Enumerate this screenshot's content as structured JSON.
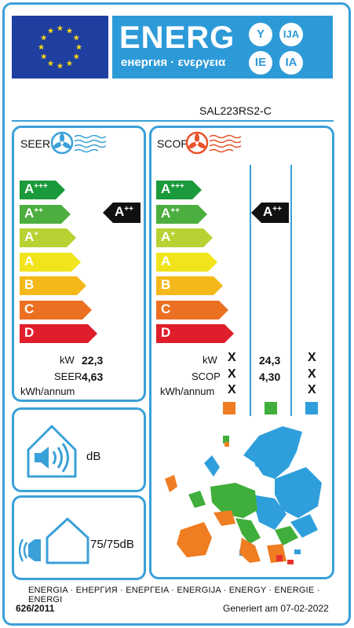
{
  "header": {
    "energy_word": "ENERG",
    "energy_sub": "енергия · ενεργεια",
    "lang_codes": [
      "Y",
      "IJA",
      "IE",
      "IA"
    ],
    "eu_flag_icon": "eu-flag-icon",
    "colors": {
      "brand_blue": "#2d9ad8",
      "eu_blue": "#1f3fa0",
      "star": "#f6d21a"
    }
  },
  "model": "SAL223RS2-C",
  "classes": [
    {
      "letter": "A",
      "sup": "+++",
      "color": "#1a9a3a"
    },
    {
      "letter": "A",
      "sup": "++",
      "color": "#4cae3e"
    },
    {
      "letter": "A",
      "sup": "+",
      "color": "#b7d232"
    },
    {
      "letter": "A",
      "sup": "",
      "color": "#f1e41c"
    },
    {
      "letter": "B",
      "sup": "",
      "color": "#f5b81a"
    },
    {
      "letter": "C",
      "sup": "",
      "color": "#ec7022"
    },
    {
      "letter": "D",
      "sup": "",
      "color": "#e01e2b"
    }
  ],
  "seer": {
    "title": "SEER",
    "icon": "fan-cool-icon",
    "indicator": {
      "letter": "A",
      "sup": "++"
    },
    "labels": {
      "kw": "kW",
      "seer": "SEER",
      "kwh": "kWh/annum"
    },
    "values": {
      "kw": "22,3",
      "seer": "4,63",
      "kwh": ""
    }
  },
  "scop": {
    "title": "SCOP",
    "icon": "fan-heat-icon",
    "indicator": {
      "letter": "A",
      "sup": "++"
    },
    "labels": {
      "kw": "kW",
      "scop": "SCOP",
      "kwh": "kWh/annum"
    },
    "col1": {
      "kw": "X",
      "scop": "X",
      "kwh": "X"
    },
    "col2": {
      "kw": "24,3",
      "scop": "4,30",
      "kwh": ""
    },
    "col3": {
      "kw": "X",
      "scop": "X",
      "kwh": "X"
    },
    "zone_colors": [
      "#ef7d22",
      "#3fae3a",
      "#2f9fdc"
    ]
  },
  "noise": {
    "indoor_icon": "indoor-speaker-icon",
    "indoor_value": "dB",
    "outdoor_icon": "outdoor-speaker-icon",
    "outdoor_value": "75/75dB"
  },
  "map_icon": "europe-climate-map-icon",
  "footer": {
    "languages": "ENERGIA · ЕНЕРГИЯ · ΕΝΕΡΓΕΙΑ · ENERGIJA · ENERGY · ENERGIE · ENERGI",
    "regulation": "626/2011",
    "generated": "Generiert am 07-02-2022"
  }
}
